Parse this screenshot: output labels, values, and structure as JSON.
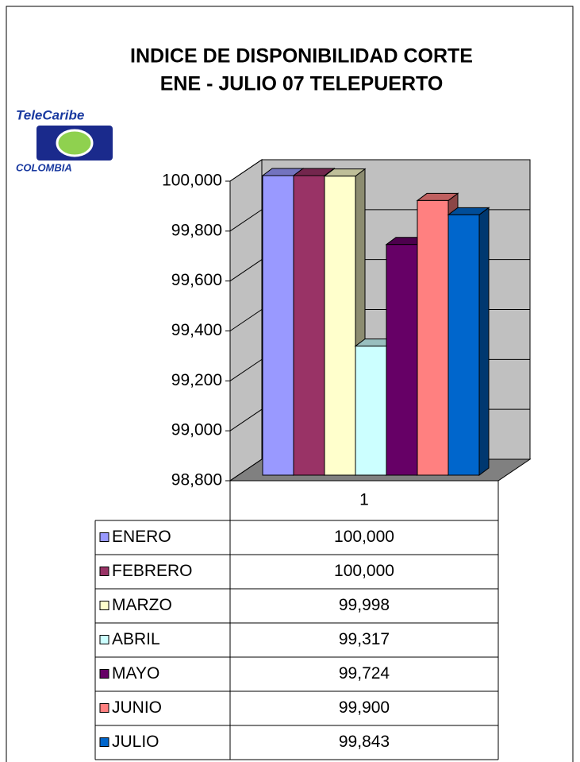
{
  "logo": {
    "top": "TeleCaribe",
    "bottom": "COLOMBIA"
  },
  "chart_data": {
    "type": "bar3d",
    "title": [
      "INDICE DE DISPONIBILIDAD CORTE",
      "ENE - JULIO 07 TELEPUERTO"
    ],
    "categories": [
      "1"
    ],
    "series": [
      {
        "name": "ENERO",
        "color": "#9999ff",
        "values": [
          100.0
        ],
        "value_labels": [
          "100,000"
        ]
      },
      {
        "name": "FEBRERO",
        "color": "#993366",
        "values": [
          100.0
        ],
        "value_labels": [
          "100,000"
        ]
      },
      {
        "name": "MARZO",
        "color": "#ffffcc",
        "values": [
          99.998
        ],
        "value_labels": [
          "99,998"
        ]
      },
      {
        "name": "ABRIL",
        "color": "#ccffff",
        "values": [
          99.317
        ],
        "value_labels": [
          "99,317"
        ]
      },
      {
        "name": "MAYO",
        "color": "#660066",
        "values": [
          99.724
        ],
        "value_labels": [
          "99,724"
        ]
      },
      {
        "name": "JUNIO",
        "color": "#ff8080",
        "values": [
          99.9
        ],
        "value_labels": [
          "99,900"
        ]
      },
      {
        "name": "JULIO",
        "color": "#0066cc",
        "values": [
          99.843
        ],
        "value_labels": [
          "99,843"
        ]
      }
    ],
    "ylim": [
      98.8,
      100.0
    ],
    "yticks": [
      {
        "value": 98.8,
        "label": "98,800"
      },
      {
        "value": 99.0,
        "label": "99,000"
      },
      {
        "value": 99.2,
        "label": "99,200"
      },
      {
        "value": 99.4,
        "label": "99,400"
      },
      {
        "value": 99.6,
        "label": "99,600"
      },
      {
        "value": 99.8,
        "label": "99,800"
      },
      {
        "value": 100.0,
        "label": "100,000"
      }
    ],
    "grid": true
  }
}
